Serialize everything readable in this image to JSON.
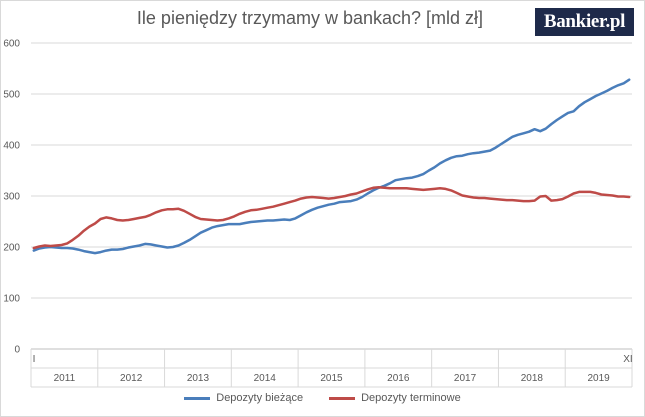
{
  "title": "Ile pieniędzy trzymamy w bankach? [mld zł]",
  "logo_text": "Bankier.pl",
  "chart_data": {
    "type": "line",
    "title": "Ile pieniędzy trzymamy w bankach? [mld zł]",
    "ylim": [
      0,
      600
    ],
    "yticks": [
      "0",
      "100",
      "200",
      "300",
      "400",
      "500",
      "600"
    ],
    "year_labels": [
      "2011",
      "2012",
      "2013",
      "2014",
      "2015",
      "2016",
      "2017",
      "2018",
      "2019"
    ],
    "month_start_label": "I",
    "month_end_label": "XI",
    "grid": true,
    "legend_position": "bottom",
    "series": [
      {
        "name": "Depozyty bieżące",
        "color": "#4a7ebb",
        "values": [
          193,
          197,
          199,
          200,
          199,
          198,
          198,
          197,
          195,
          192,
          190,
          188,
          190,
          193,
          195,
          195,
          196,
          199,
          201,
          203,
          206,
          205,
          203,
          201,
          199,
          200,
          203,
          208,
          214,
          221,
          228,
          233,
          238,
          241,
          243,
          245,
          245,
          245,
          247,
          249,
          250,
          251,
          252,
          252,
          253,
          254,
          253,
          256,
          262,
          268,
          273,
          277,
          280,
          283,
          285,
          288,
          289,
          290,
          293,
          298,
          305,
          311,
          316,
          320,
          325,
          331,
          333,
          335,
          336,
          339,
          343,
          350,
          356,
          364,
          370,
          375,
          378,
          379,
          382,
          384,
          385,
          387,
          389,
          395,
          402,
          409,
          416,
          420,
          423,
          426,
          431,
          427,
          432,
          441,
          449,
          456,
          463,
          466,
          476,
          484,
          490,
          496,
          501,
          506,
          512,
          517,
          521,
          528
        ]
      },
      {
        "name": "Depozyty terminowe",
        "color": "#be4b48",
        "values": [
          198,
          201,
          203,
          202,
          203,
          204,
          207,
          214,
          222,
          232,
          240,
          246,
          255,
          258,
          256,
          253,
          252,
          253,
          255,
          257,
          259,
          263,
          268,
          272,
          274,
          274,
          275,
          271,
          265,
          259,
          255,
          254,
          253,
          252,
          253,
          256,
          260,
          265,
          269,
          272,
          273,
          275,
          277,
          279,
          282,
          285,
          288,
          291,
          295,
          297,
          298,
          297,
          296,
          295,
          296,
          298,
          300,
          303,
          305,
          309,
          313,
          316,
          317,
          316,
          315,
          315,
          315,
          315,
          314,
          313,
          312,
          313,
          314,
          315,
          314,
          311,
          306,
          301,
          299,
          297,
          296,
          296,
          295,
          294,
          293,
          292,
          292,
          291,
          290,
          290,
          291,
          299,
          300,
          291,
          292,
          294,
          299,
          305,
          308,
          308,
          308,
          306,
          303,
          302,
          301,
          299,
          299,
          298
        ]
      }
    ]
  }
}
